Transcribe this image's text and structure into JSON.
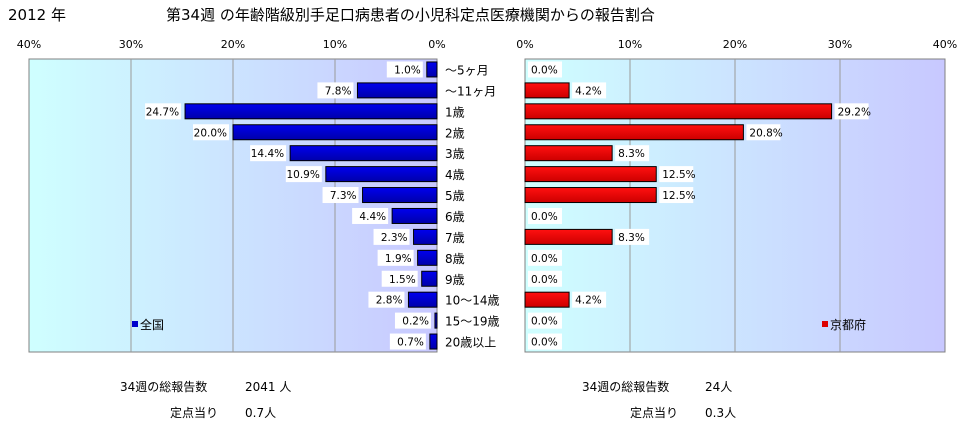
{
  "header": {
    "year": "2012 年",
    "title": "第34週 の年齢階級別手足口病患者の小児科定点医療機関からの報告割合"
  },
  "chart_data": {
    "type": "bar",
    "categories": [
      "～5ヶ月",
      "～11ヶ月",
      "1歳",
      "2歳",
      "3歳",
      "4歳",
      "5歳",
      "6歳",
      "7歳",
      "8歳",
      "9歳",
      "10～14歳",
      "15～19歳",
      "20歳以上"
    ],
    "axis_ticks": [
      "40%",
      "30%",
      "20%",
      "10%",
      "0%"
    ],
    "axis_ticks_right": [
      "0%",
      "10%",
      "20%",
      "30%",
      "40%"
    ],
    "xlim": [
      0,
      40
    ],
    "grid": true,
    "series": [
      {
        "name": "全国",
        "color": "#0000cc",
        "values": [
          1.0,
          7.8,
          24.7,
          20.0,
          14.4,
          10.9,
          7.3,
          4.4,
          2.3,
          1.9,
          1.5,
          2.8,
          0.2,
          0.7
        ],
        "labels": [
          "1.0%",
          "7.8%",
          "24.7%",
          "20.0%",
          "14.4%",
          "10.9%",
          "7.3%",
          "4.4%",
          "2.3%",
          "1.9%",
          "1.5%",
          "2.8%",
          "0.2%",
          "0.7%"
        ],
        "legend": "全国",
        "legend_position": "bottom-left"
      },
      {
        "name": "京都府",
        "color": "#dd0000",
        "values": [
          0.0,
          4.2,
          29.2,
          20.8,
          8.3,
          12.5,
          12.5,
          0.0,
          8.3,
          0.0,
          0.0,
          4.2,
          0.0,
          0.0
        ],
        "labels": [
          "0.0%",
          "4.2%",
          "29.2%",
          "20.8%",
          "8.3%",
          "12.5%",
          "12.5%",
          "0.0%",
          "8.3%",
          "0.0%",
          "0.0%",
          "4.2%",
          "0.0%",
          "0.0%"
        ],
        "legend": "京都府",
        "legend_position": "bottom-right"
      }
    ]
  },
  "footer": {
    "national": {
      "total_label": "34週の総報告数",
      "total_value": "2041 人",
      "per_label": "定点当り",
      "per_value": "0.7人"
    },
    "kyoto": {
      "total_label": "34週の総報告数",
      "total_value": "24人",
      "per_label": "定点当り",
      "per_value": "0.3人"
    }
  }
}
